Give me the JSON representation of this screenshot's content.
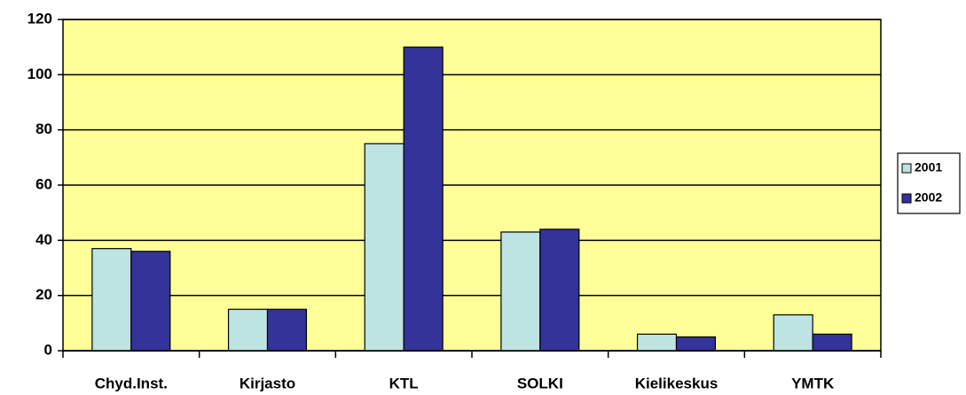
{
  "chart_data": {
    "type": "bar",
    "categories": [
      "Chyd.Inst.",
      "Kirjasto",
      "KTL",
      "SOLKI",
      "Kielikeskus",
      "YMTK"
    ],
    "series": [
      {
        "name": "2001",
        "color": "#bde3e3",
        "values": [
          37,
          15,
          75,
          43,
          6,
          13
        ]
      },
      {
        "name": "2002",
        "color": "#333399",
        "values": [
          36,
          15,
          110,
          44,
          5,
          6
        ]
      }
    ],
    "ylim": [
      0,
      120
    ],
    "yticks": [
      0,
      20,
      40,
      60,
      80,
      100,
      120
    ],
    "grid": true,
    "plot_background": "#ffff99",
    "legend": "right"
  }
}
